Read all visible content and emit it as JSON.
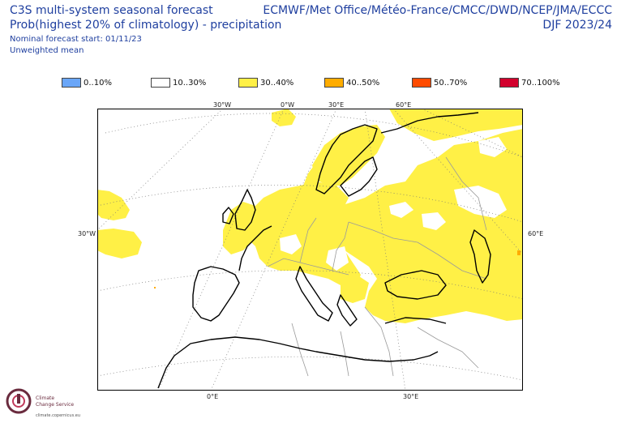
{
  "title": {
    "line1": "C3S multi-system seasonal forecast",
    "line2": "Prob(highest 20% of climatology) - precipitation",
    "line3": "Nominal forecast start: 01/11/23",
    "line4": "Unweighted mean",
    "centres": "ECMWF/Met Office/Météo-France/CMCC/DWD/NCEP/JMA/ECCC",
    "season": "DJF 2023/24"
  },
  "legend": [
    {
      "label": "0..10%",
      "color": "#6aa6f8"
    },
    {
      "label": "10..30%",
      "color": "#ffffff"
    },
    {
      "label": "30..40%",
      "color": "#fff046"
    },
    {
      "label": "40..50%",
      "color": "#ffac00"
    },
    {
      "label": "50..70%",
      "color": "#ff4b00"
    },
    {
      "label": "70..100%",
      "color": "#d2002d"
    }
  ],
  "map": {
    "top_labels": [
      "30°W",
      "0°W",
      "30°E",
      "60°E"
    ],
    "left_label": "30°W",
    "right_label": "60°E",
    "bottom_labels": [
      "0°E",
      "30°E"
    ],
    "land_color": "#ffffff",
    "coast_color": "#000000",
    "border_color": "#9a9a9a",
    "grid_color": "#777777"
  },
  "logo": {
    "name_line1": "Climate",
    "name_line2": "Change Service",
    "url": "climate.copernicus.eu"
  }
}
